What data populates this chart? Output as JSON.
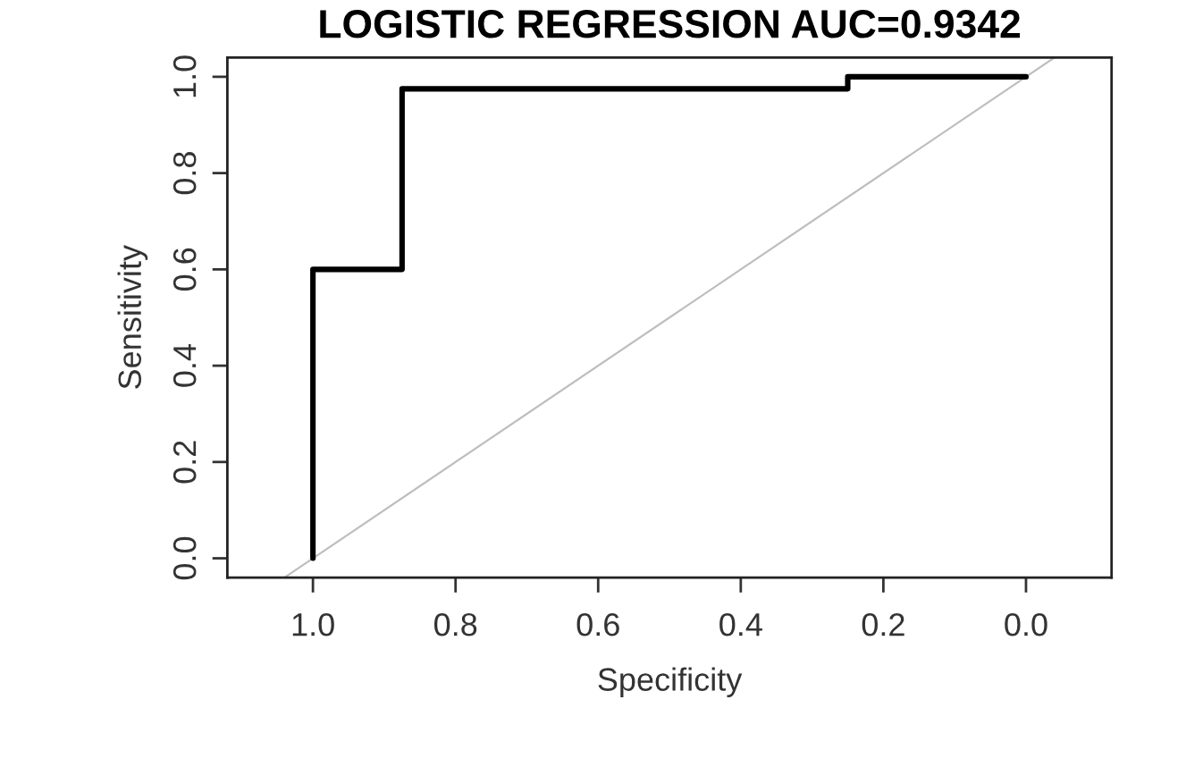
{
  "chart_data": {
    "type": "step",
    "title": "LOGISTIC REGRESSION AUC=0.9342",
    "xlabel": "Specificity",
    "ylabel": "Sensitivity",
    "series": [
      {
        "color": "#000000",
        "x": [
          1.0,
          1.0,
          0.875,
          0.875,
          0.25,
          0.25,
          0.0
        ],
        "values": [
          0.0,
          0.6,
          0.6,
          0.975,
          0.975,
          1.0,
          1.0
        ]
      },
      {
        "type": "line",
        "color": "#bebebe",
        "x": [
          1.04,
          -0.04
        ],
        "values": [
          -0.04,
          1.04
        ]
      }
    ],
    "xlim": [
      1.12,
      -0.12
    ],
    "ylim": [
      -0.04,
      1.04
    ],
    "xticks": [
      {
        "value": 1.0,
        "label": "1.0"
      },
      {
        "value": 0.8,
        "label": "0.8"
      },
      {
        "value": 0.6,
        "label": "0.6"
      },
      {
        "value": 0.4,
        "label": "0.4"
      },
      {
        "value": 0.2,
        "label": "0.2"
      },
      {
        "value": 0.0,
        "label": "0.0"
      }
    ],
    "yticks": [
      {
        "value": 0.0,
        "label": "0.0"
      },
      {
        "value": 0.2,
        "label": "0.2"
      },
      {
        "value": 0.4,
        "label": "0.4"
      },
      {
        "value": 0.6,
        "label": "0.6"
      },
      {
        "value": 0.8,
        "label": "0.8"
      },
      {
        "value": 1.0,
        "label": "1.0"
      }
    ],
    "grid": false,
    "legend": false,
    "marker": "none"
  }
}
